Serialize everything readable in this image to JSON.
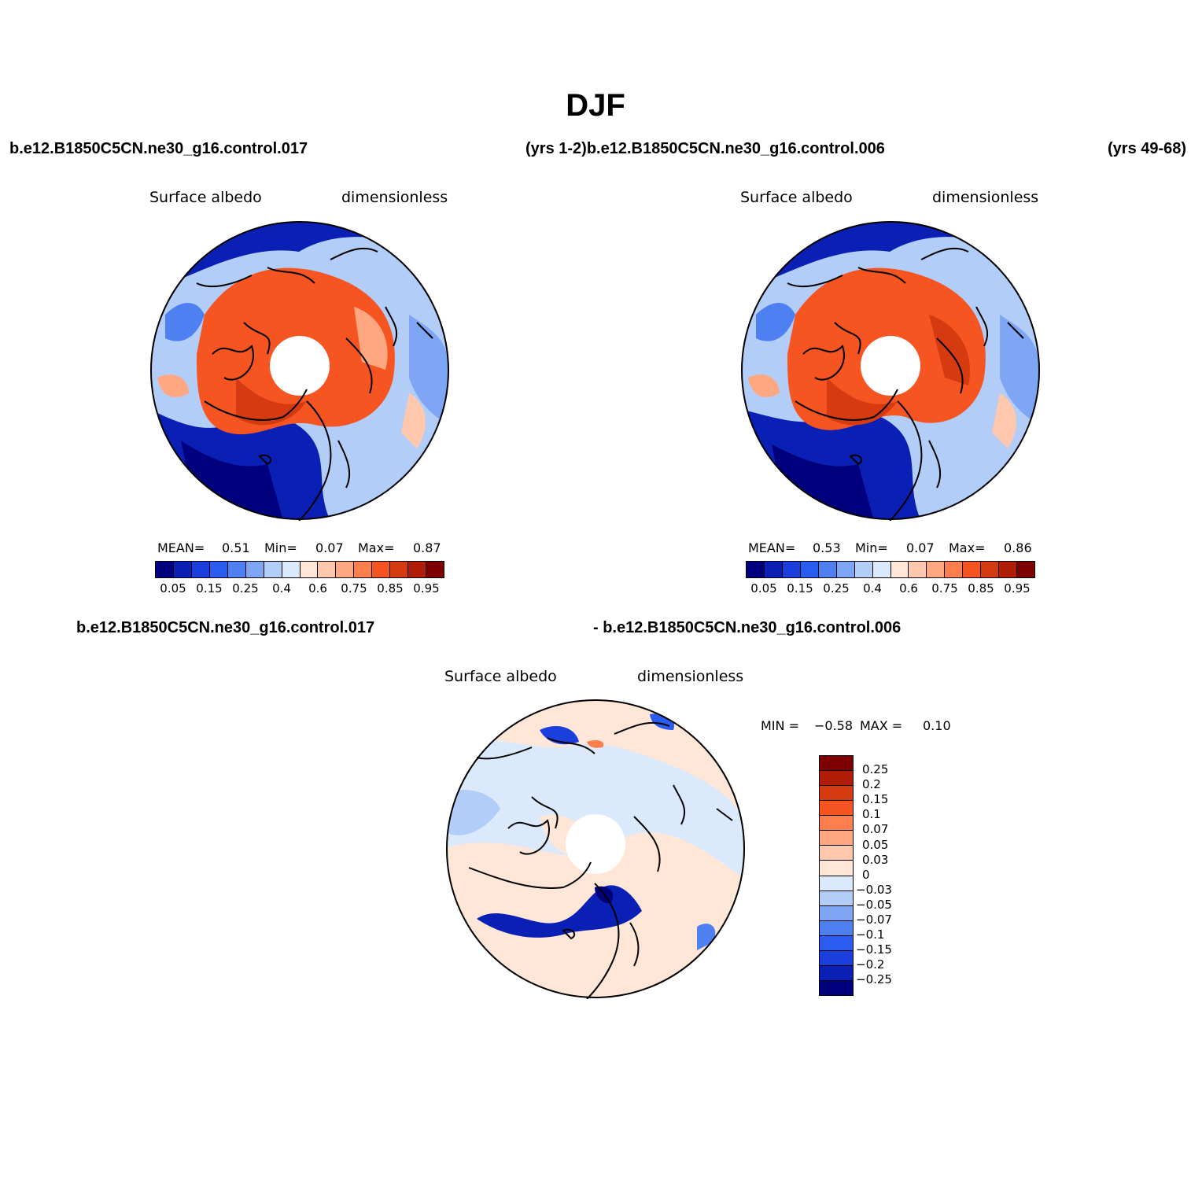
{
  "title": "DJF",
  "header": {
    "left_case": "b.e12.B1850C5CN.ne30_g16.control.017",
    "mid_case": "(yrs 1-2)b.e12.B1850C5CN.ne30_g16.control.006",
    "right_years": "(yrs 49-68)"
  },
  "diff_header": {
    "left": "b.e12.B1850C5CN.ne30_g16.control.017",
    "right": "- b.e12.B1850C5CN.ne30_g16.control.006"
  },
  "panels": [
    {
      "variable": "Surface albedo",
      "units": "dimensionless",
      "stats": {
        "mean_label": "MEAN=",
        "mean": "0.51",
        "min_label": "Min=",
        "min": "0.07",
        "max_label": "Max=",
        "max": "0.87"
      }
    },
    {
      "variable": "Surface albedo",
      "units": "dimensionless",
      "stats": {
        "mean_label": "MEAN=",
        "mean": "0.53",
        "min_label": "Min=",
        "min": "0.07",
        "max_label": "Max=",
        "max": "0.86"
      }
    }
  ],
  "diff_panel": {
    "variable": "Surface albedo",
    "units": "dimensionless",
    "min_label": "MIN =",
    "min": "−0.58",
    "max_label": "MAX =",
    "max": "0.10"
  },
  "colorbar_abs": {
    "colors": [
      "#00007f",
      "#0a20b4",
      "#1a3fdc",
      "#2b5cf0",
      "#4f80f2",
      "#7ea6f5",
      "#b3cdf9",
      "#dbe9fd",
      "#ffe6d6",
      "#ffc8ad",
      "#ffa781",
      "#ff7e4d",
      "#f65420",
      "#d63a10",
      "#b11e08",
      "#7f0000"
    ],
    "labels": [
      "0.05",
      "0.15",
      "0.25",
      "0.4",
      "0.6",
      "0.75",
      "0.85",
      "0.95"
    ]
  },
  "colorbar_diff": {
    "colors": [
      "#7f0000",
      "#b11e08",
      "#d63a10",
      "#f65420",
      "#ff7e4d",
      "#ffa781",
      "#ffc8ad",
      "#ffe6d6",
      "#dbe9fd",
      "#b3cdf9",
      "#7ea6f5",
      "#4f80f2",
      "#2b5cf0",
      "#1a3fdc",
      "#0a20b4",
      "#00007f"
    ],
    "labels": [
      "0.25",
      "0.2",
      "0.15",
      "0.1",
      "0.07",
      "0.05",
      "0.03",
      "0",
      "−0.03",
      "−0.05",
      "−0.07",
      "−0.1",
      "−0.15",
      "−0.2",
      "−0.25"
    ]
  }
}
